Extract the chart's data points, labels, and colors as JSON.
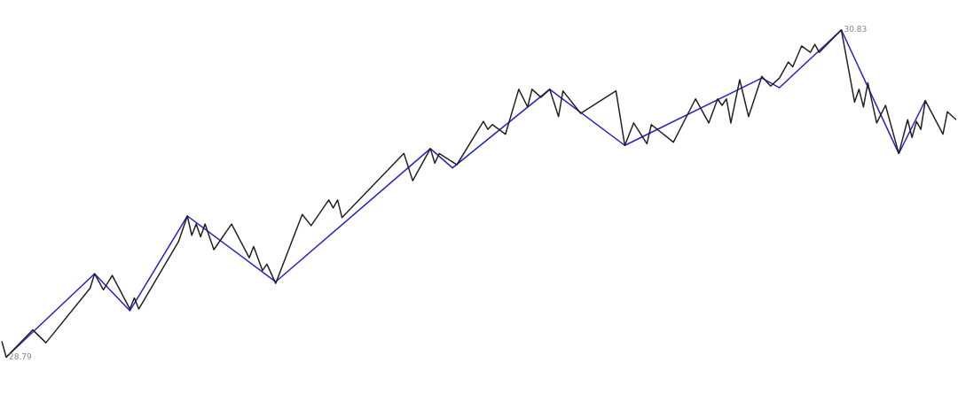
{
  "chart_data": {
    "type": "line",
    "legend": false,
    "marker": "none",
    "line_style": "solid",
    "categories": [
      null,
      null,
      null,
      null,
      null,
      null,
      null,
      null,
      null,
      null,
      null,
      null,
      null,
      null,
      null,
      null,
      null,
      null,
      null,
      null,
      null,
      null,
      null,
      null,
      null,
      null,
      null,
      null,
      null,
      null,
      null,
      null,
      null,
      null,
      null,
      null,
      null,
      null,
      null,
      null,
      null,
      null,
      null,
      null,
      null,
      null,
      null,
      null,
      null,
      null,
      null,
      null,
      null,
      null,
      null,
      null,
      null,
      null,
      null,
      null,
      null,
      null,
      null,
      null,
      null,
      null,
      null,
      null,
      null,
      null,
      null,
      null,
      null,
      null,
      null,
      null,
      null,
      null,
      null,
      null,
      null,
      null,
      null,
      null,
      null,
      null,
      null,
      null,
      null,
      null,
      null,
      null,
      null,
      null,
      null,
      null,
      null,
      null,
      null,
      null,
      null,
      null,
      null,
      null,
      null,
      null,
      null,
      null,
      null,
      null,
      null,
      null,
      null,
      null,
      null,
      null,
      null,
      null,
      null,
      null,
      null,
      null,
      null,
      null,
      null,
      null,
      null,
      null,
      null,
      null,
      null,
      null,
      null,
      null,
      null,
      null,
      null,
      null,
      null,
      null,
      null,
      null,
      null,
      null,
      null,
      null,
      null,
      null,
      null,
      null,
      null,
      null,
      null,
      null,
      null,
      null,
      null,
      null,
      null,
      null,
      null,
      null,
      null,
      null,
      null,
      null,
      null,
      null,
      null,
      null,
      null,
      null,
      null,
      null,
      null,
      null,
      null,
      null,
      null,
      null,
      null,
      null,
      null,
      null,
      null,
      null,
      null,
      null,
      null,
      null,
      null,
      null,
      null,
      null,
      null,
      null,
      null,
      null,
      null,
      null,
      null,
      null,
      null,
      null,
      null,
      null,
      null,
      null,
      null,
      null,
      null,
      null,
      null,
      null,
      null,
      null,
      null
    ],
    "series": [
      {
        "color": "#222222",
        "values": [
          28.89,
          28.79,
          null,
          null,
          null,
          null,
          null,
          28.96,
          null,
          null,
          28.88,
          null,
          null,
          null,
          null,
          null,
          null,
          null,
          null,
          null,
          29.22,
          29.31,
          null,
          29.21,
          null,
          29.3,
          null,
          null,
          null,
          29.09,
          29.16,
          29.09,
          null,
          null,
          null,
          null,
          null,
          null,
          null,
          null,
          29.51,
          null,
          29.67,
          29.55,
          29.62,
          29.54,
          29.62,
          null,
          29.46,
          null,
          null,
          null,
          29.62,
          null,
          null,
          null,
          29.41,
          29.48,
          null,
          29.33,
          29.37,
          null,
          29.25,
          null,
          null,
          null,
          null,
          null,
          29.68,
          null,
          29.61,
          null,
          null,
          null,
          29.77,
          29.72,
          29.77,
          29.66,
          null,
          null,
          null,
          null,
          null,
          null,
          null,
          null,
          null,
          null,
          null,
          null,
          null,
          30.06,
          null,
          29.89,
          null,
          null,
          null,
          30.09,
          30.0,
          30.06,
          null,
          null,
          null,
          29.99,
          null,
          null,
          null,
          null,
          null,
          30.26,
          30.21,
          30.24,
          null,
          null,
          30.18,
          null,
          null,
          30.46,
          null,
          30.35,
          30.46,
          null,
          30.41,
          null,
          30.46,
          null,
          30.29,
          30.45,
          null,
          null,
          null,
          30.31,
          null,
          null,
          null,
          null,
          null,
          null,
          null,
          30.45,
          null,
          30.11,
          null,
          30.25,
          null,
          null,
          30.12,
          30.24,
          null,
          null,
          null,
          null,
          30.13,
          null,
          null,
          null,
          null,
          30.4,
          null,
          null,
          30.25,
          null,
          30.4,
          30.36,
          30.4,
          30.25,
          null,
          30.52,
          null,
          30.29,
          null,
          null,
          30.54,
          null,
          30.48,
          null,
          30.53,
          null,
          30.63,
          30.6,
          null,
          30.73,
          null,
          30.69,
          30.74,
          30.69,
          null,
          null,
          null,
          null,
          30.83,
          null,
          null,
          30.38,
          30.46,
          30.35,
          30.5,
          null,
          30.25,
          null,
          30.36,
          null,
          null,
          30.06,
          null,
          30.27,
          30.16,
          30.26,
          30.21,
          30.39,
          null,
          null,
          null,
          30.18,
          30.32,
          null,
          30.27
        ]
      },
      {
        "color": "#2222cc",
        "values": [
          null,
          28.79,
          null,
          null,
          null,
          null,
          null,
          null,
          null,
          null,
          null,
          null,
          null,
          null,
          null,
          null,
          null,
          null,
          null,
          null,
          null,
          29.31,
          null,
          null,
          null,
          null,
          null,
          null,
          null,
          29.08,
          null,
          null,
          null,
          null,
          null,
          null,
          null,
          null,
          null,
          null,
          null,
          null,
          29.67,
          null,
          null,
          null,
          null,
          null,
          null,
          null,
          null,
          null,
          null,
          null,
          null,
          null,
          null,
          null,
          null,
          null,
          null,
          null,
          29.26,
          null,
          null,
          null,
          null,
          null,
          null,
          null,
          null,
          null,
          null,
          null,
          null,
          null,
          null,
          null,
          null,
          null,
          null,
          null,
          null,
          null,
          null,
          null,
          null,
          null,
          null,
          null,
          null,
          null,
          null,
          null,
          null,
          null,
          null,
          30.09,
          null,
          null,
          null,
          null,
          29.97,
          null,
          null,
          null,
          null,
          null,
          null,
          null,
          null,
          null,
          null,
          null,
          null,
          null,
          null,
          null,
          null,
          null,
          null,
          null,
          null,
          null,
          30.46,
          null,
          null,
          null,
          null,
          null,
          null,
          null,
          null,
          null,
          null,
          null,
          null,
          null,
          null,
          null,
          null,
          30.11,
          null,
          null,
          null,
          null,
          null,
          null,
          null,
          null,
          null,
          null,
          null,
          null,
          null,
          null,
          null,
          null,
          null,
          null,
          null,
          null,
          null,
          null,
          null,
          null,
          null,
          null,
          null,
          null,
          null,
          null,
          30.53,
          null,
          null,
          null,
          30.47,
          null,
          null,
          null,
          null,
          null,
          null,
          null,
          null,
          null,
          null,
          null,
          null,
          null,
          30.83,
          null,
          null,
          null,
          null,
          null,
          null,
          null,
          null,
          null,
          null,
          null,
          null,
          30.06,
          null,
          null,
          null,
          null,
          null,
          30.39,
          null,
          null,
          null,
          null,
          null,
          null,
          null
        ],
        "value_labels": [
          null,
          "28.79",
          null,
          null,
          null,
          null,
          null,
          null,
          null,
          null,
          null,
          null,
          null,
          null,
          null,
          null,
          null,
          null,
          null,
          null,
          null,
          null,
          null,
          null,
          null,
          null,
          null,
          null,
          null,
          null,
          null,
          null,
          null,
          null,
          null,
          null,
          null,
          null,
          null,
          null,
          null,
          null,
          null,
          null,
          null,
          null,
          null,
          null,
          null,
          null,
          null,
          null,
          null,
          null,
          null,
          null,
          null,
          null,
          null,
          null,
          null,
          null,
          null,
          null,
          null,
          null,
          null,
          null,
          null,
          null,
          null,
          null,
          null,
          null,
          null,
          null,
          null,
          null,
          null,
          null,
          null,
          null,
          null,
          null,
          null,
          null,
          null,
          null,
          null,
          null,
          null,
          null,
          null,
          null,
          null,
          null,
          null,
          null,
          null,
          null,
          null,
          null,
          null,
          null,
          null,
          null,
          null,
          null,
          null,
          null,
          null,
          null,
          null,
          null,
          null,
          null,
          null,
          null,
          null,
          null,
          null,
          null,
          null,
          null,
          null,
          null,
          null,
          null,
          null,
          null,
          null,
          null,
          null,
          null,
          null,
          null,
          null,
          null,
          null,
          null,
          null,
          null,
          null,
          null,
          null,
          null,
          null,
          null,
          null,
          null,
          null,
          null,
          null,
          null,
          null,
          null,
          null,
          null,
          null,
          null,
          null,
          null,
          null,
          null,
          null,
          null,
          null,
          null,
          null,
          null,
          null,
          null,
          null,
          null,
          null,
          null,
          null,
          null,
          null,
          null,
          null,
          null,
          null,
          null,
          null,
          null,
          null,
          null,
          null,
          null,
          "30.83",
          null,
          null,
          null,
          null,
          null,
          null,
          null,
          null,
          null,
          null,
          null,
          null,
          null,
          null,
          null,
          null,
          null,
          null,
          null,
          null,
          null,
          null,
          null,
          null,
          null,
          null
        ]
      }
    ]
  }
}
